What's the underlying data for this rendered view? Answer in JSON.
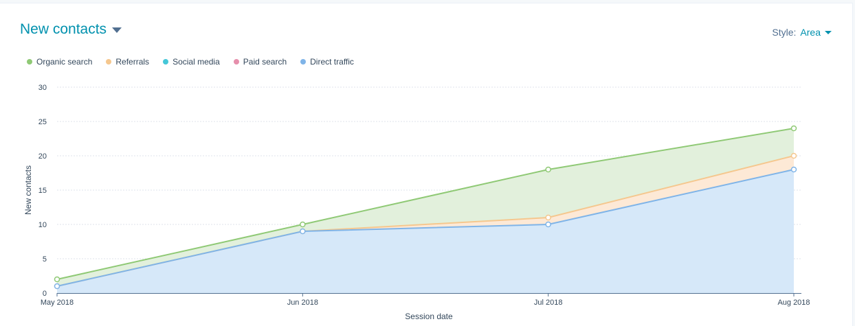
{
  "header": {
    "title": "New contacts",
    "style_label": "Style:",
    "style_value": "Area"
  },
  "legend": [
    {
      "label": "Organic search",
      "color": "#8fc975",
      "icon": "legend-dot"
    },
    {
      "label": "Referrals",
      "color": "#f5c78e",
      "icon": "legend-dot"
    },
    {
      "label": "Social media",
      "color": "#45c7d8",
      "icon": "legend-dot"
    },
    {
      "label": "Paid search",
      "color": "#e68fac",
      "icon": "legend-dot"
    },
    {
      "label": "Direct traffic",
      "color": "#7fb4e8",
      "icon": "legend-dot"
    }
  ],
  "chart_data": {
    "type": "area",
    "stacked": true,
    "categories": [
      "May 2018",
      "Jun 2018",
      "Jul 2018",
      "Aug 2018"
    ],
    "series": [
      {
        "name": "Direct traffic",
        "values": [
          1,
          9,
          10,
          18
        ],
        "color": "#7fb4e8"
      },
      {
        "name": "Paid search",
        "values": [
          0,
          0,
          0,
          0
        ],
        "color": "#e68fac"
      },
      {
        "name": "Social media",
        "values": [
          0,
          0,
          0,
          0
        ],
        "color": "#45c7d8"
      },
      {
        "name": "Referrals",
        "values": [
          0,
          0,
          1,
          2
        ],
        "color": "#f5c78e"
      },
      {
        "name": "Organic search",
        "values": [
          1,
          1,
          7,
          4
        ],
        "color": "#8fc975"
      }
    ],
    "xlabel": "Session date",
    "ylabel": "New contacts",
    "ylim": [
      0,
      30
    ],
    "yticks": [
      0,
      5,
      10,
      15,
      20,
      25,
      30
    ],
    "grid": true,
    "legend_position": "top-left"
  }
}
